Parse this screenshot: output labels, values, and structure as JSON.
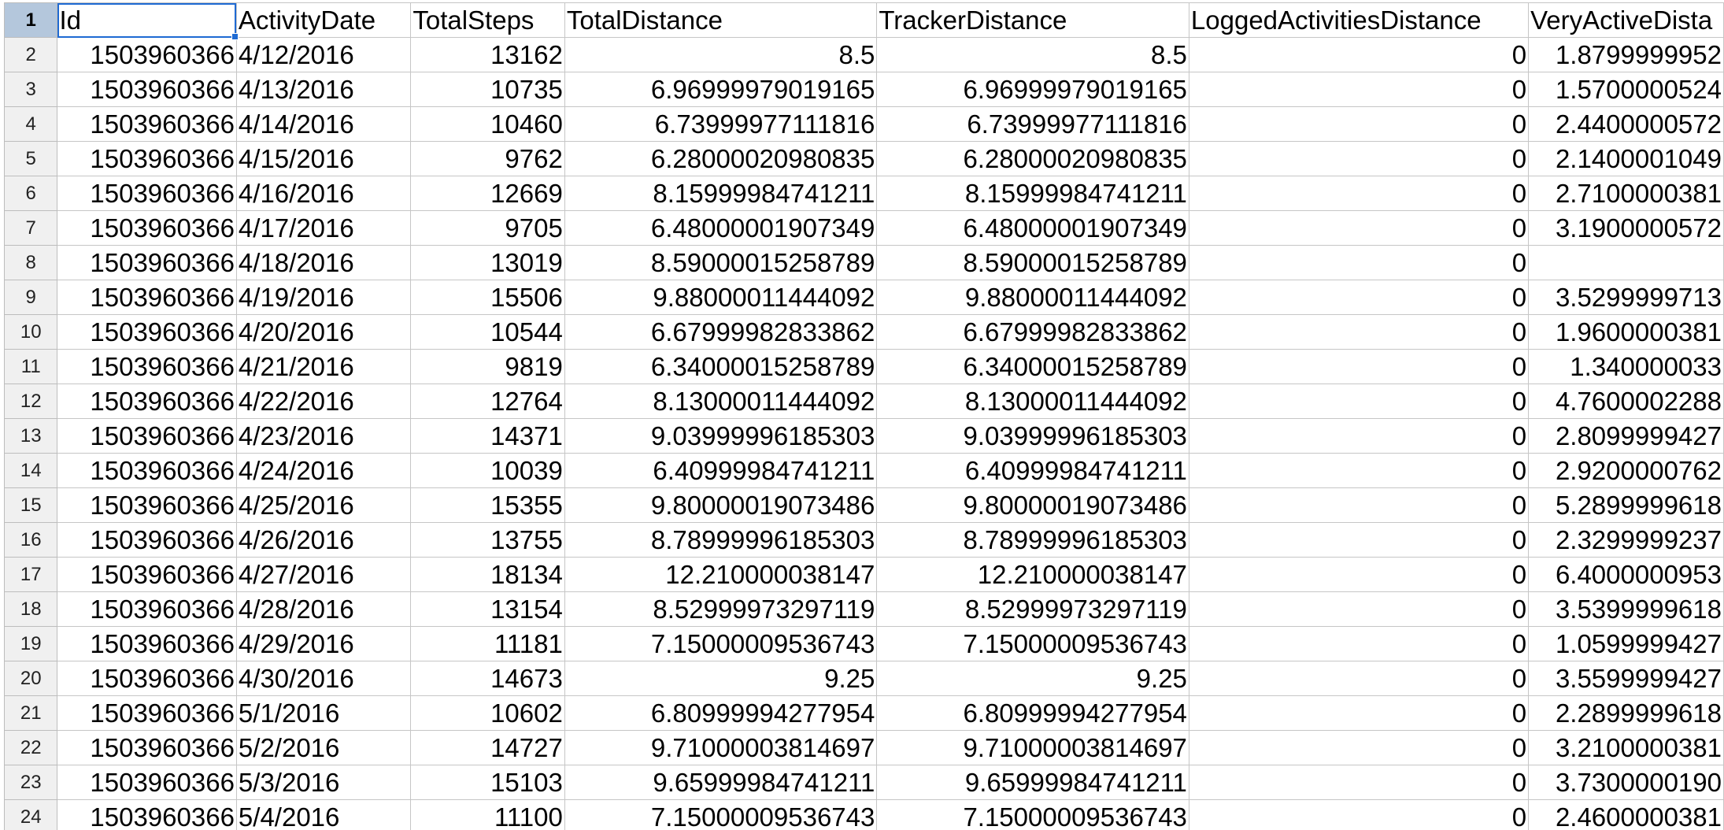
{
  "sheet": {
    "columns": [
      "Id",
      "ActivityDate",
      "TotalSteps",
      "TotalDistance",
      "TrackerDistance",
      "LoggedActivitiesDistance",
      "VeryActiveDista"
    ],
    "header_row_number": "1",
    "rows": [
      {
        "n": "2",
        "cells": [
          "1503960366",
          "4/12/2016",
          "13162",
          "8.5",
          "8.5",
          "0",
          "1.8799999952"
        ]
      },
      {
        "n": "3",
        "cells": [
          "1503960366",
          "4/13/2016",
          "10735",
          "6.96999979019165",
          "6.96999979019165",
          "0",
          "1.5700000524"
        ]
      },
      {
        "n": "4",
        "cells": [
          "1503960366",
          "4/14/2016",
          "10460",
          "6.73999977111816",
          "6.73999977111816",
          "0",
          "2.4400000572"
        ]
      },
      {
        "n": "5",
        "cells": [
          "1503960366",
          "4/15/2016",
          "9762",
          "6.28000020980835",
          "6.28000020980835",
          "0",
          "2.1400001049"
        ]
      },
      {
        "n": "6",
        "cells": [
          "1503960366",
          "4/16/2016",
          "12669",
          "8.15999984741211",
          "8.15999984741211",
          "0",
          "2.7100000381"
        ]
      },
      {
        "n": "7",
        "cells": [
          "1503960366",
          "4/17/2016",
          "9705",
          "6.48000001907349",
          "6.48000001907349",
          "0",
          "3.1900000572"
        ]
      },
      {
        "n": "8",
        "cells": [
          "1503960366",
          "4/18/2016",
          "13019",
          "8.59000015258789",
          "8.59000015258789",
          "0",
          ""
        ]
      },
      {
        "n": "9",
        "cells": [
          "1503960366",
          "4/19/2016",
          "15506",
          "9.88000011444092",
          "9.88000011444092",
          "0",
          "3.5299999713"
        ]
      },
      {
        "n": "10",
        "cells": [
          "1503960366",
          "4/20/2016",
          "10544",
          "6.67999982833862",
          "6.67999982833862",
          "0",
          "1.9600000381"
        ]
      },
      {
        "n": "11",
        "cells": [
          "1503960366",
          "4/21/2016",
          "9819",
          "6.34000015258789",
          "6.34000015258789",
          "0",
          "1.340000033"
        ]
      },
      {
        "n": "12",
        "cells": [
          "1503960366",
          "4/22/2016",
          "12764",
          "8.13000011444092",
          "8.13000011444092",
          "0",
          "4.7600002288"
        ]
      },
      {
        "n": "13",
        "cells": [
          "1503960366",
          "4/23/2016",
          "14371",
          "9.03999996185303",
          "9.03999996185303",
          "0",
          "2.8099999427"
        ]
      },
      {
        "n": "14",
        "cells": [
          "1503960366",
          "4/24/2016",
          "10039",
          "6.40999984741211",
          "6.40999984741211",
          "0",
          "2.9200000762"
        ]
      },
      {
        "n": "15",
        "cells": [
          "1503960366",
          "4/25/2016",
          "15355",
          "9.80000019073486",
          "9.80000019073486",
          "0",
          "5.2899999618"
        ]
      },
      {
        "n": "16",
        "cells": [
          "1503960366",
          "4/26/2016",
          "13755",
          "8.78999996185303",
          "8.78999996185303",
          "0",
          "2.3299999237"
        ]
      },
      {
        "n": "17",
        "cells": [
          "1503960366",
          "4/27/2016",
          "18134",
          "12.210000038147",
          "12.210000038147",
          "0",
          "6.4000000953"
        ]
      },
      {
        "n": "18",
        "cells": [
          "1503960366",
          "4/28/2016",
          "13154",
          "8.52999973297119",
          "8.52999973297119",
          "0",
          "3.5399999618"
        ]
      },
      {
        "n": "19",
        "cells": [
          "1503960366",
          "4/29/2016",
          "11181",
          "7.15000009536743",
          "7.15000009536743",
          "0",
          "1.0599999427"
        ]
      },
      {
        "n": "20",
        "cells": [
          "1503960366",
          "4/30/2016",
          "14673",
          "9.25",
          "9.25",
          "0",
          "3.5599999427"
        ]
      },
      {
        "n": "21",
        "cells": [
          "1503960366",
          "5/1/2016",
          "10602",
          "6.80999994277954",
          "6.80999994277954",
          "0",
          "2.2899999618"
        ]
      },
      {
        "n": "22",
        "cells": [
          "1503960366",
          "5/2/2016",
          "14727",
          "9.71000003814697",
          "9.71000003814697",
          "0",
          "3.2100000381"
        ]
      },
      {
        "n": "23",
        "cells": [
          "1503960366",
          "5/3/2016",
          "15103",
          "9.65999984741211",
          "9.65999984741211",
          "0",
          "3.7300000190"
        ]
      },
      {
        "n": "24",
        "cells": [
          "1503960366",
          "5/4/2016",
          "11100",
          "7.15000009536743",
          "7.15000009536743",
          "0",
          "2.4600000381"
        ]
      }
    ],
    "colors": {
      "grid_line": "#c6c6c6",
      "row_header_bg": "#f0f0f0",
      "active_row_header_bg": "#b4c7dc",
      "selection_border": "#1e6ad3"
    }
  }
}
